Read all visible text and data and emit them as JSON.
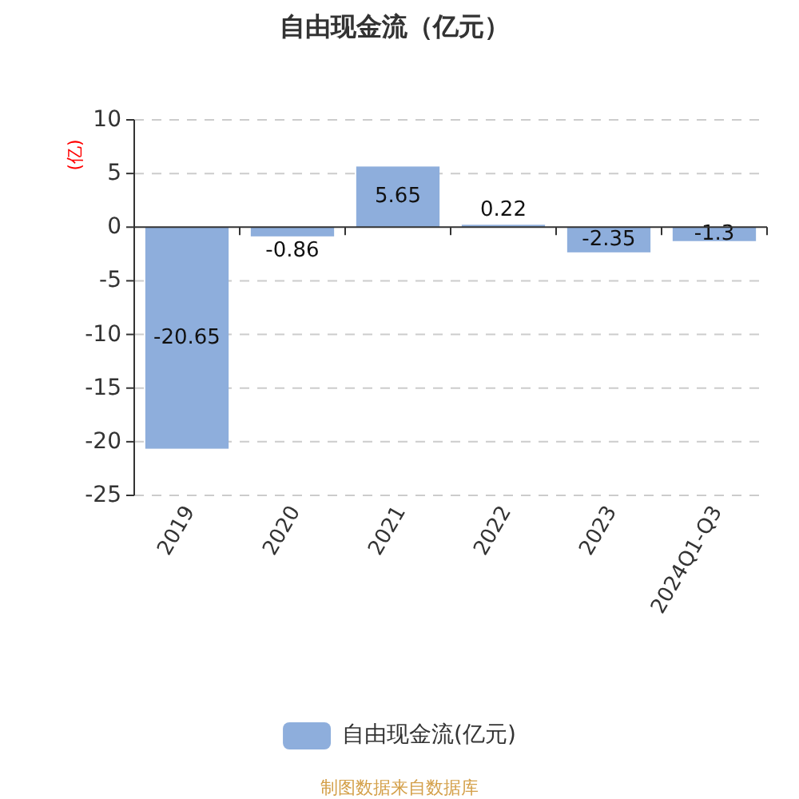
{
  "chart_data": {
    "type": "bar",
    "title": "自由现金流（亿元）",
    "ylabel": "(亿)",
    "categories": [
      "2019",
      "2020",
      "2021",
      "2022",
      "2023",
      "2024Q1-Q3"
    ],
    "series": [
      {
        "name": "自由现金流(亿元)",
        "color": "#8eaedc",
        "values": [
          -20.65,
          -0.86,
          5.65,
          0.22,
          -2.35,
          -1.3
        ]
      }
    ],
    "data_labels": true,
    "ylim": [
      -25,
      10
    ],
    "yticks": [
      -25,
      -20,
      -15,
      -10,
      -5,
      0,
      5,
      10
    ],
    "grid": "y",
    "legend": "bottom",
    "annotations": [
      "制图数据来自数据库"
    ]
  }
}
